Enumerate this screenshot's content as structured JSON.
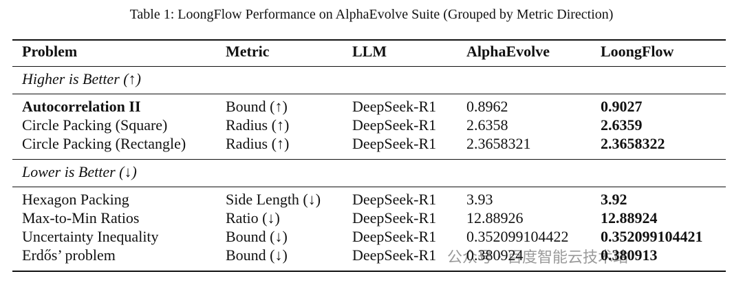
{
  "caption": "Table 1: LoongFlow Performance on AlphaEvolve Suite (Grouped by Metric Direction)",
  "table": {
    "header": [
      "Problem",
      "Metric",
      "LLM",
      "AlphaEvolve",
      "LoongFlow"
    ],
    "groups": [
      {
        "label": "Higher is Better (↑)",
        "rows": [
          [
            "Autocorrelation II",
            "Bound (↑)",
            "DeepSeek-R1",
            "0.8962",
            "0.9027"
          ],
          [
            "Circle Packing (Square)",
            "Radius (↑)",
            "DeepSeek-R1",
            "2.6358",
            "2.6359"
          ],
          [
            "Circle Packing (Rectangle)",
            "Radius (↑)",
            "DeepSeek-R1",
            "2.3658321",
            "2.3658322"
          ]
        ]
      },
      {
        "label": "Lower is Better (↓)",
        "rows": [
          [
            "Hexagon Packing",
            "Side Length (↓)",
            "DeepSeek-R1",
            "3.93",
            "3.92"
          ],
          [
            "Max-to-Min Ratios",
            "Ratio (↓)",
            "DeepSeek-R1",
            "12.88926",
            "12.88924"
          ],
          [
            "Uncertainty Inequality",
            "Bound (↓)",
            "DeepSeek-R1",
            "0.352099104422",
            "0.352099104421"
          ],
          [
            "Erdős’ problem",
            "Bound (↓)",
            "DeepSeek-R1",
            "0.380924",
            "0.380913"
          ]
        ]
      }
    ]
  },
  "watermark": "公众号 · 百度智能云技术站"
}
